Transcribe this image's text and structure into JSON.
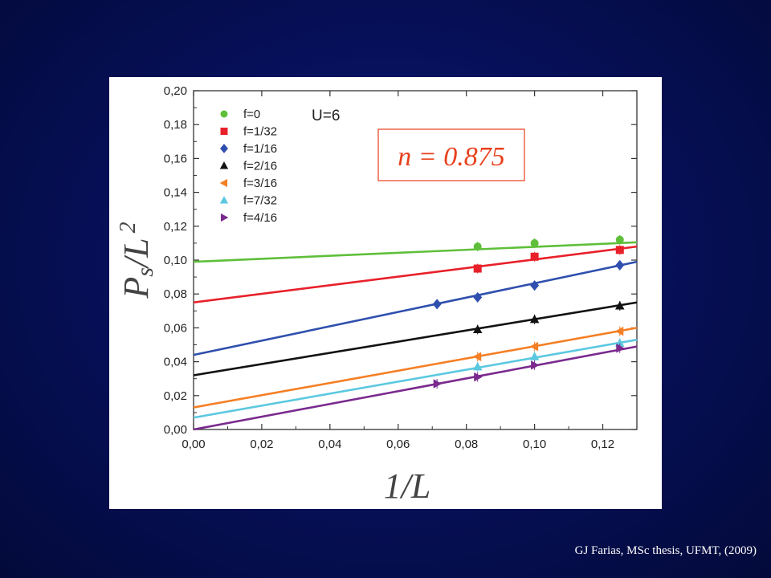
{
  "caption": "GJ Farias, MSc thesis, UFMT, (2009)",
  "chart_data": {
    "type": "scatter",
    "xlabel": "1/L",
    "ylabel_main": "P",
    "ylabel_sub": "s",
    "ylabel_rest": "/L",
    "ylabel_sup": "2",
    "xlim": [
      0,
      0.13
    ],
    "ylim": [
      0,
      0.2
    ],
    "x_ticks": [
      "0,00",
      "0,02",
      "0,04",
      "0,06",
      "0,08",
      "0,10",
      "0,12"
    ],
    "y_ticks": [
      "0,00",
      "0,02",
      "0,04",
      "0,06",
      "0,08",
      "0,10",
      "0,12",
      "0,14",
      "0,16",
      "0,18",
      "0,20"
    ],
    "grid": false,
    "legend_position": "top-left",
    "annotation": "U=6",
    "inset_label": "n = 0.875",
    "inset_color": "#e8401c",
    "series": [
      {
        "name": "f=0",
        "color": "#5fbf3a",
        "marker": "circle",
        "x": [
          0.0833,
          0.1,
          0.125
        ],
        "y": [
          0.108,
          0.11,
          0.112
        ],
        "fit": [
          0.099,
          0.1105
        ]
      },
      {
        "name": "f=1/32",
        "color": "#e8202a",
        "marker": "square",
        "x": [
          0.0833,
          0.1,
          0.125
        ],
        "y": [
          0.095,
          0.102,
          0.106
        ],
        "fit": [
          0.075,
          0.108
        ]
      },
      {
        "name": "f=1/16",
        "color": "#2f4fae",
        "marker": "diamond",
        "x": [
          0.0714,
          0.0833,
          0.1,
          0.125
        ],
        "y": [
          0.074,
          0.078,
          0.085,
          0.097
        ],
        "fit": [
          0.044,
          0.099
        ]
      },
      {
        "name": "f=2/16",
        "color": "#111111",
        "marker": "triangle-up",
        "x": [
          0.0833,
          0.1,
          0.125
        ],
        "y": [
          0.059,
          0.065,
          0.073
        ],
        "fit": [
          0.032,
          0.075
        ]
      },
      {
        "name": "f=3/16",
        "color": "#f57f25",
        "marker": "triangle-left",
        "x": [
          0.0833,
          0.1,
          0.125
        ],
        "y": [
          0.043,
          0.049,
          0.058
        ],
        "fit": [
          0.013,
          0.06
        ]
      },
      {
        "name": "f=7/32",
        "color": "#5cc8e0",
        "marker": "triangle-up",
        "x": [
          0.0833,
          0.1,
          0.125
        ],
        "y": [
          0.037,
          0.043,
          0.051
        ],
        "fit": [
          0.007,
          0.053
        ]
      },
      {
        "name": "f=4/16",
        "color": "#7a2a8e",
        "marker": "triangle-right",
        "x": [
          0.0714,
          0.0833,
          0.1,
          0.125
        ],
        "y": [
          0.027,
          0.031,
          0.038,
          0.048
        ],
        "fit": [
          0.0,
          0.049
        ]
      }
    ]
  }
}
